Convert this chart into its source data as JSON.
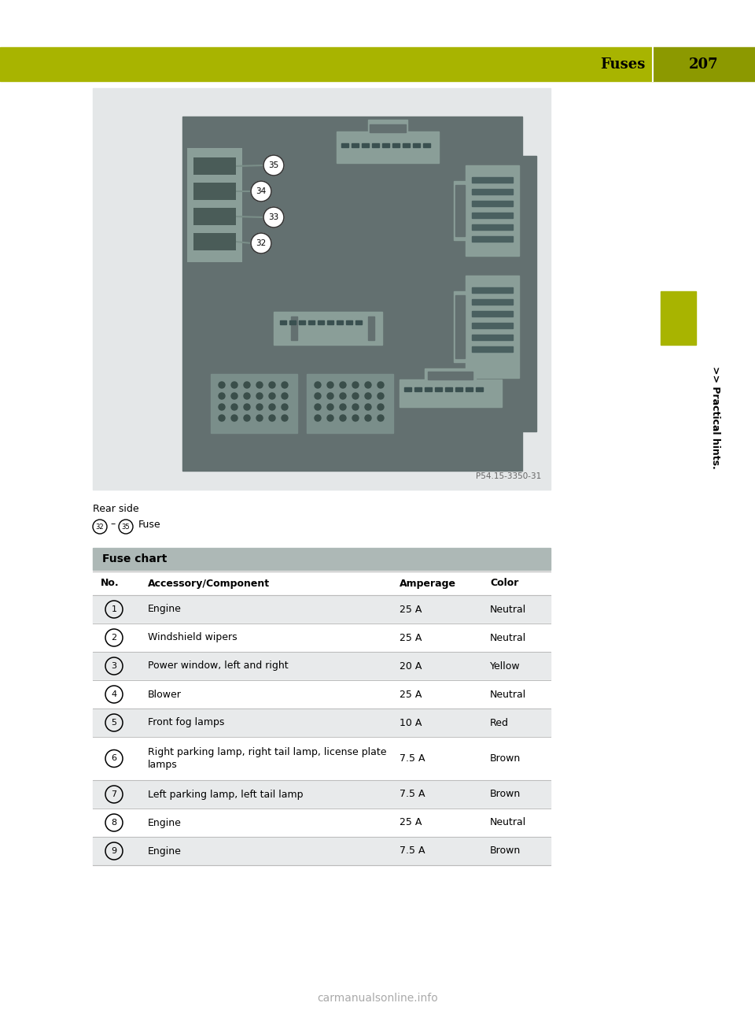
{
  "page_title": "Fuses",
  "page_number": "207",
  "header_bg_color": "#a8b400",
  "header_number_bg": "#8c9900",
  "sidebar_text": ">> Practical hints.",
  "sidebar_rect_color": "#a8b400",
  "image_caption": "Rear side",
  "photo_ref": "P54.15-3350-31",
  "diagram_bg": "#e4e7e8",
  "diagram_inner_bg": "#637070",
  "connector_light": "#9ab0a8",
  "connector_dark": "#4a6060",
  "fuse_chart_header": "Fuse chart",
  "fuse_chart_header_bg": "#adb8b6",
  "table_alt_bg": "#e8eaeb",
  "col_headers": [
    "No.",
    "Accessory/Component",
    "Amperage",
    "Color"
  ],
  "rows": [
    {
      "no": "1",
      "component": "Engine",
      "amperage": "25 A",
      "color": "Neutral"
    },
    {
      "no": "2",
      "component": "Windshield wipers",
      "amperage": "25 A",
      "color": "Neutral"
    },
    {
      "no": "3",
      "component": "Power window, left and right",
      "amperage": "20 A",
      "color": "Yellow"
    },
    {
      "no": "4",
      "component": "Blower",
      "amperage": "25 A",
      "color": "Neutral"
    },
    {
      "no": "5",
      "component": "Front fog lamps",
      "amperage": "10 A",
      "color": "Red"
    },
    {
      "no": "6",
      "component": "Right parking lamp, right tail lamp, license plate\nlamps",
      "amperage": "7.5 A",
      "color": "Brown"
    },
    {
      "no": "7",
      "component": "Left parking lamp, left tail lamp",
      "amperage": "7.5 A",
      "color": "Brown"
    },
    {
      "no": "8",
      "component": "Engine",
      "amperage": "25 A",
      "color": "Neutral"
    },
    {
      "no": "9",
      "component": "Engine",
      "amperage": "7.5 A",
      "color": "Brown"
    }
  ],
  "website": "carmanualsonline.info"
}
